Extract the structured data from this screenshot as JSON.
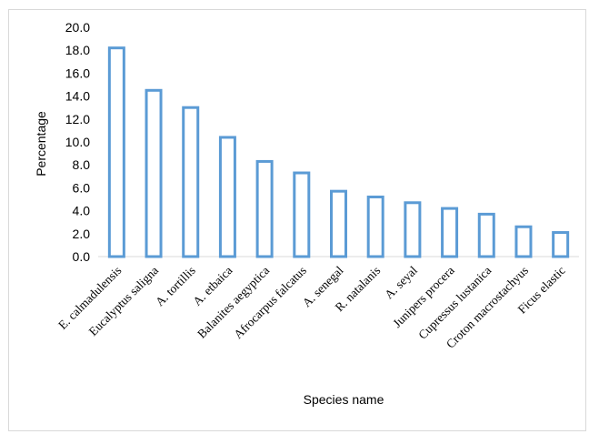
{
  "chart_data": {
    "type": "bar",
    "title": "",
    "xlabel": "Species name",
    "ylabel": "Percentage",
    "ylim": [
      0,
      20
    ],
    "yticks": [
      "0.0",
      "2.0",
      "4.0",
      "6.0",
      "8.0",
      "10.0",
      "12.0",
      "14.0",
      "16.0",
      "18.0",
      "20.0"
    ],
    "grid": false,
    "bar_style": "outline",
    "bar_color": "#5b9bd5",
    "categories": [
      "E. calmadulensis",
      "Eucalyptus saligna",
      "A. tortillis",
      "A. etbaica",
      "Balanites aegyptica",
      "Afrocarpus falcatus",
      "A. senegal",
      "R. natalanis",
      "A. seyal",
      "Junipers procera",
      "Cupressus lustanica",
      "Croton macrostachyus",
      "Ficus elastic"
    ],
    "values": [
      18.2,
      14.5,
      13.0,
      10.4,
      8.3,
      7.3,
      5.7,
      5.2,
      4.7,
      4.2,
      3.7,
      2.6,
      2.1
    ]
  }
}
